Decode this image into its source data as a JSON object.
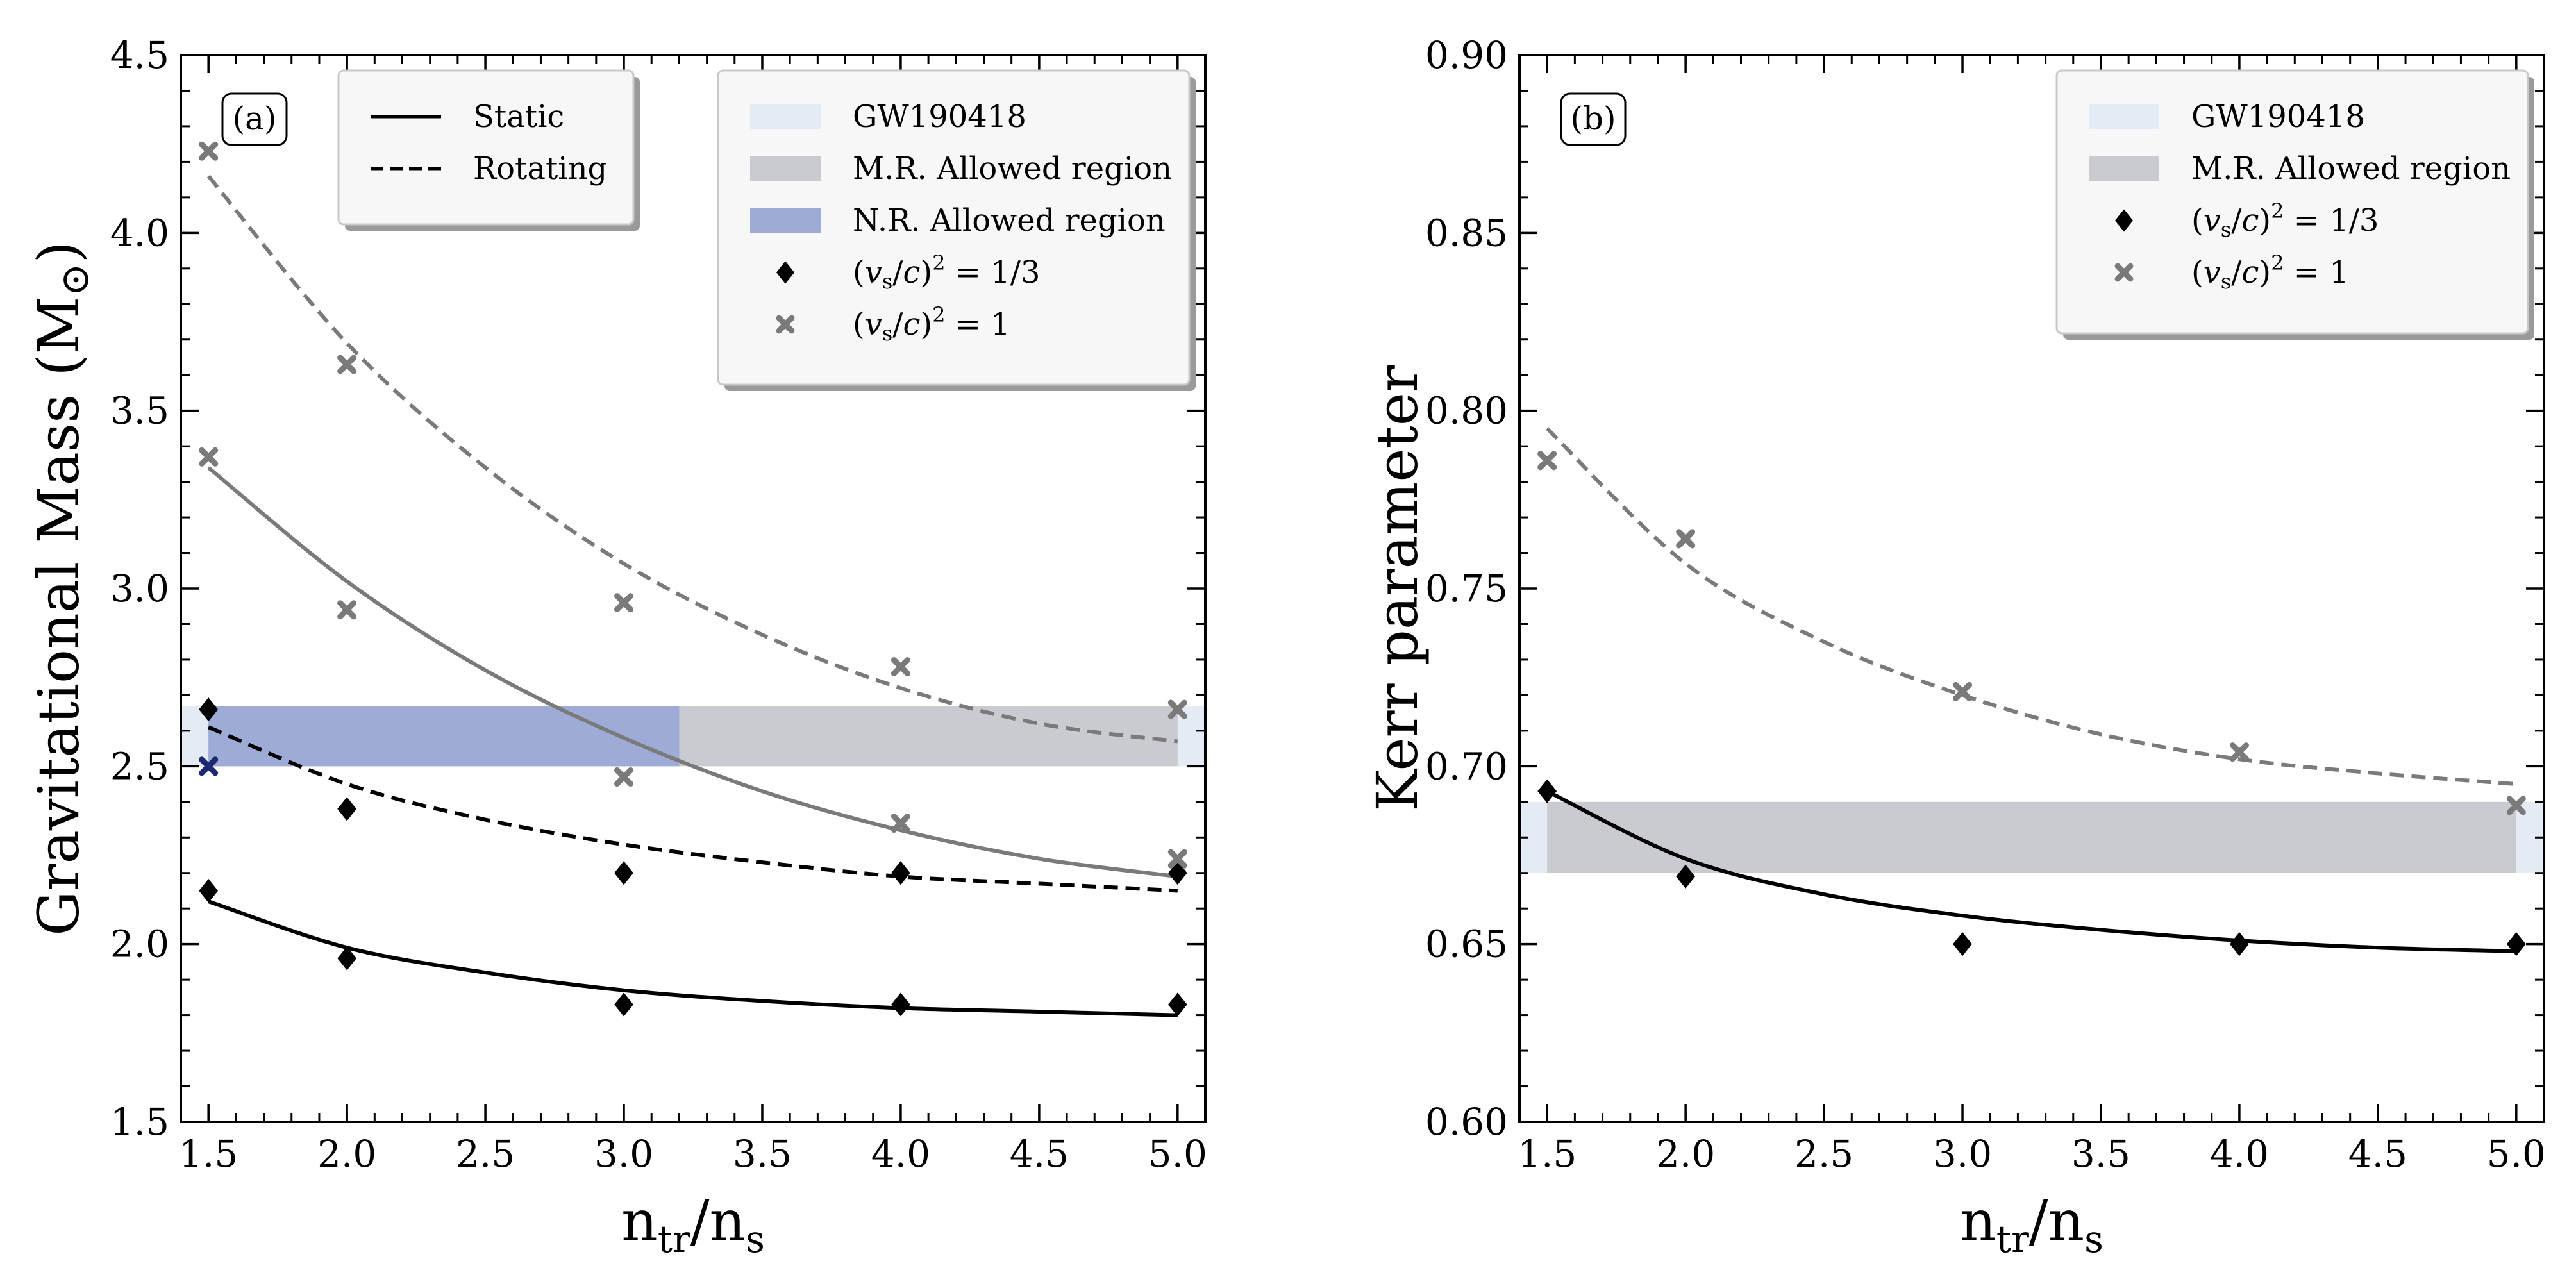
{
  "chart_data": [
    {
      "type": "line",
      "panel_label": "(a)",
      "xlabel_main": "n",
      "xlabel_sub1": "tr",
      "xlabel_sep": "/n",
      "xlabel_sub2": "s",
      "ylabel": "Gravitational Mass (M",
      "ylabel_sym": "⊙",
      "ylabel_close": ")",
      "xlim": [
        1.4,
        5.1
      ],
      "ylim": [
        1.5,
        4.5
      ],
      "xticks": [
        1.5,
        2.0,
        2.5,
        3.0,
        3.5,
        4.0,
        4.5,
        5.0
      ],
      "xtick_labels": [
        "1.5",
        "2.0",
        "2.5",
        "3.0",
        "3.5",
        "4.0",
        "4.5",
        "5.0"
      ],
      "yticks": [
        1.5,
        2.0,
        2.5,
        3.0,
        3.5,
        4.0,
        4.5
      ],
      "ytick_labels": [
        "1.5",
        "2.0",
        "2.5",
        "3.0",
        "3.5",
        "4.0",
        "4.5"
      ],
      "bands": [
        {
          "name": "GW190418",
          "x": [
            1.4,
            5.1
          ],
          "y": [
            2.5,
            2.67
          ],
          "color": "#e4ebf5"
        },
        {
          "name": "M.R. Allowed region",
          "x": [
            1.5,
            5.0
          ],
          "y": [
            2.5,
            2.67
          ],
          "color": "#c9cbd1"
        },
        {
          "name": "N.R. Allowed region",
          "x": [
            1.5,
            3.2
          ],
          "y": [
            2.5,
            2.67
          ],
          "color": "#9eabd6"
        }
      ],
      "series": [
        {
          "key": "cs13_static",
          "marker": "diamond",
          "color": "#000000",
          "line": "solid",
          "x": [
            1.5,
            2.0,
            3.0,
            4.0,
            5.0
          ],
          "y": [
            2.15,
            1.96,
            1.83,
            1.83,
            1.83
          ],
          "fit": {
            "x": [
              1.5,
              2.0,
              2.5,
              3.0,
              3.5,
              4.0,
              4.5,
              5.0
            ],
            "y": [
              2.12,
              1.99,
              1.92,
              1.87,
              1.84,
              1.82,
              1.81,
              1.8
            ]
          }
        },
        {
          "key": "cs13_rotating",
          "marker": "diamond",
          "color": "#000000",
          "line": "dashed",
          "x": [
            1.5,
            2.0,
            3.0,
            4.0,
            5.0
          ],
          "y": [
            2.66,
            2.38,
            2.2,
            2.2,
            2.2
          ],
          "fit": {
            "x": [
              1.5,
              2.0,
              2.5,
              3.0,
              3.5,
              4.0,
              4.5,
              5.0
            ],
            "y": [
              2.61,
              2.45,
              2.35,
              2.28,
              2.23,
              2.19,
              2.17,
              2.15
            ]
          }
        },
        {
          "key": "cs1_static",
          "marker": "x",
          "color": "#7a7a7a",
          "line": "solid",
          "x": [
            1.5,
            2.0,
            3.0,
            4.0,
            5.0
          ],
          "y": [
            3.37,
            2.94,
            2.47,
            2.34,
            2.24
          ],
          "fit": {
            "x": [
              1.5,
              2.0,
              2.5,
              3.0,
              3.5,
              4.0,
              4.5,
              5.0
            ],
            "y": [
              3.34,
              3.02,
              2.77,
              2.58,
              2.43,
              2.32,
              2.24,
              2.19
            ]
          }
        },
        {
          "key": "cs1_rotating",
          "marker": "x",
          "color": "#7a7a7a",
          "line": "dashed",
          "x": [
            1.5,
            2.0,
            3.0,
            4.0,
            5.0
          ],
          "y": [
            4.23,
            3.63,
            2.96,
            2.78,
            2.66
          ],
          "fit": {
            "x": [
              1.5,
              2.0,
              2.5,
              3.0,
              3.5,
              4.0,
              4.5,
              5.0
            ],
            "y": [
              4.16,
              3.69,
              3.34,
              3.07,
              2.87,
              2.72,
              2.62,
              2.57
            ]
          }
        }
      ],
      "legend_lines": [
        {
          "label": "Static",
          "style": "solid"
        },
        {
          "label": "Rotating",
          "style": "dashed"
        }
      ],
      "legend_items": [
        {
          "label": "GW190418",
          "kind": "band",
          "color": "#e4ebf5"
        },
        {
          "label": "M.R. Allowed region",
          "kind": "band",
          "color": "#c9cbd1"
        },
        {
          "label": "N.R. Allowed region",
          "kind": "band",
          "color": "#9eabd6"
        },
        {
          "label": "(v_s/c)^2 = 1/3",
          "kind": "diamond",
          "color": "#000000"
        },
        {
          "label": "(v_s/c)^2 = 1",
          "kind": "x",
          "color": "#7a7a7a"
        }
      ]
    },
    {
      "type": "line",
      "panel_label": "(b)",
      "xlabel_main": "n",
      "xlabel_sub1": "tr",
      "xlabel_sep": "/n",
      "xlabel_sub2": "s",
      "ylabel": "Kerr parameter",
      "xlim": [
        1.4,
        5.1
      ],
      "ylim": [
        0.6,
        0.9
      ],
      "xticks": [
        1.5,
        2.0,
        2.5,
        3.0,
        3.5,
        4.0,
        4.5,
        5.0
      ],
      "xtick_labels": [
        "1.5",
        "2.0",
        "2.5",
        "3.0",
        "3.5",
        "4.0",
        "4.5",
        "5.0"
      ],
      "yticks": [
        0.6,
        0.65,
        0.7,
        0.75,
        0.8,
        0.85,
        0.9
      ],
      "ytick_labels": [
        "0.60",
        "0.65",
        "0.70",
        "0.75",
        "0.80",
        "0.85",
        "0.90"
      ],
      "bands": [
        {
          "name": "GW190418",
          "x": [
            1.4,
            5.1
          ],
          "y": [
            0.67,
            0.69
          ],
          "color": "#e4ebf5"
        },
        {
          "name": "M.R. Allowed region",
          "x": [
            1.5,
            5.0
          ],
          "y": [
            0.67,
            0.69
          ],
          "color": "#c9cbd1"
        }
      ],
      "series": [
        {
          "key": "cs13",
          "marker": "diamond",
          "color": "#000000",
          "line": "solid",
          "x": [
            1.5,
            2.0,
            3.0,
            4.0,
            5.0
          ],
          "y": [
            0.693,
            0.669,
            0.65,
            0.65,
            0.65
          ],
          "fit": {
            "x": [
              1.5,
              2.0,
              2.5,
              3.0,
              3.5,
              4.0,
              4.5,
              5.0
            ],
            "y": [
              0.693,
              0.674,
              0.664,
              0.658,
              0.654,
              0.651,
              0.649,
              0.648
            ]
          }
        },
        {
          "key": "cs1",
          "marker": "x",
          "color": "#7a7a7a",
          "line": "dashed",
          "x": [
            1.5,
            2.0,
            3.0,
            4.0,
            5.0
          ],
          "y": [
            0.786,
            0.764,
            0.721,
            0.704,
            0.689
          ],
          "fit": {
            "x": [
              1.5,
              2.0,
              2.5,
              3.0,
              3.5,
              4.0,
              4.5,
              5.0
            ],
            "y": [
              0.795,
              0.757,
              0.735,
              0.72,
              0.709,
              0.702,
              0.698,
              0.695
            ]
          }
        }
      ],
      "legend_items": [
        {
          "label": "GW190418",
          "kind": "band",
          "color": "#e4ebf5"
        },
        {
          "label": "M.R. Allowed region",
          "kind": "band",
          "color": "#c9cbd1"
        },
        {
          "label": "(v_s/c)^2 = 1/3",
          "kind": "diamond",
          "color": "#000000"
        },
        {
          "label": "(v_s/c)^2 = 1",
          "kind": "x",
          "color": "#7a7a7a"
        }
      ]
    }
  ]
}
